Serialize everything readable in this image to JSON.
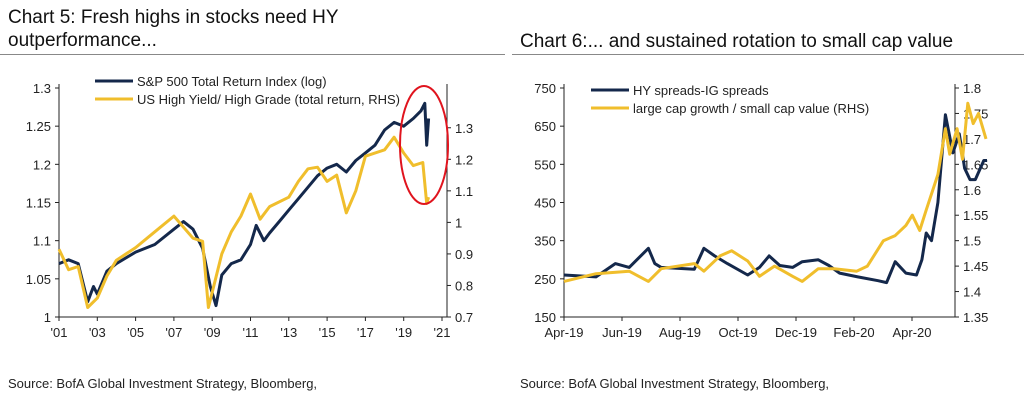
{
  "chart_data": [
    {
      "type": "line",
      "title": "Chart 5: Fresh highs in stocks need HY outperformance...",
      "source": "Source: BofA Global Investment Strategy, Bloomberg,",
      "xticks": [
        "'01",
        "'03",
        "'05",
        "'07",
        "'09",
        "'11",
        "'13",
        "'15",
        "'17",
        "'19",
        "'21"
      ],
      "xlim": [
        2001,
        2021
      ],
      "ylim": [
        1,
        1.3
      ],
      "yticks": [
        "1",
        "1.05",
        "1.1",
        "1.15",
        "1.2",
        "1.25",
        "1.3"
      ],
      "y2lim": [
        0.7,
        1.35
      ],
      "y2ticks": [
        "0.7",
        "0.8",
        "0.9",
        "1",
        "1.1",
        "1.2",
        "1.3"
      ],
      "legend_placement": "top-left",
      "annotation": "red ellipse highlighting 2019-2020 divergence",
      "series": [
        {
          "name": "S&P 500 Total Return Index (log)",
          "axis": "left",
          "color": "#14284b",
          "x": [
            2001,
            2001.5,
            2002,
            2002.5,
            2002.8,
            2003,
            2003.5,
            2004,
            2005,
            2006,
            2007,
            2007.5,
            2008,
            2008.5,
            2008.9,
            2009.2,
            2009.5,
            2010,
            2010.5,
            2011,
            2011.3,
            2011.7,
            2012,
            2012.5,
            2013,
            2013.5,
            2014,
            2014.5,
            2015,
            2015.5,
            2016,
            2016.5,
            2017,
            2017.5,
            2018,
            2018.5,
            2019,
            2019.5,
            2019.9,
            2020.1,
            2020.2,
            2020.3
          ],
          "y": [
            1.07,
            1.075,
            1.07,
            1.02,
            1.04,
            1.03,
            1.06,
            1.07,
            1.085,
            1.095,
            1.115,
            1.125,
            1.115,
            1.09,
            1.04,
            1.015,
            1.055,
            1.07,
            1.075,
            1.095,
            1.12,
            1.1,
            1.11,
            1.125,
            1.14,
            1.155,
            1.17,
            1.185,
            1.195,
            1.2,
            1.19,
            1.205,
            1.215,
            1.225,
            1.245,
            1.255,
            1.25,
            1.26,
            1.27,
            1.28,
            1.225,
            1.26
          ]
        },
        {
          "name": "US High Yield/ High Grade (total return, RHS)",
          "axis": "right",
          "color": "#f0be2c",
          "x": [
            2001,
            2001.5,
            2002,
            2002.5,
            2003,
            2003.5,
            2004,
            2005,
            2006,
            2007,
            2008,
            2008.5,
            2008.8,
            2009.5,
            2010,
            2010.5,
            2011,
            2011.5,
            2012,
            2013,
            2013.5,
            2014,
            2014.5,
            2015,
            2015.5,
            2016,
            2016.5,
            2017,
            2018,
            2018.5,
            2019,
            2019.5,
            2020,
            2020.2,
            2020.3
          ],
          "y": [
            0.915,
            0.85,
            0.86,
            0.73,
            0.76,
            0.83,
            0.88,
            0.92,
            0.97,
            1.02,
            0.95,
            0.94,
            0.73,
            0.9,
            0.97,
            1.02,
            1.09,
            1.01,
            1.05,
            1.08,
            1.13,
            1.17,
            1.175,
            1.13,
            1.15,
            1.03,
            1.1,
            1.21,
            1.23,
            1.27,
            1.22,
            1.18,
            1.19,
            1.06,
            1.08
          ]
        }
      ]
    },
    {
      "type": "line",
      "title": "Chart 6:... and sustained rotation to small cap value",
      "source": "Source: BofA Global Investment Strategy, Bloomberg,",
      "xticks": [
        "Apr-19",
        "Jun-19",
        "Aug-19",
        "Oct-19",
        "Dec-19",
        "Feb-20",
        "Apr-20"
      ],
      "xlim": [
        "2019-04-01",
        "2020-05-15"
      ],
      "ylim": [
        150,
        750
      ],
      "yticks": [
        "150",
        "250",
        "350",
        "450",
        "550",
        "650",
        "750"
      ],
      "y2lim": [
        1.35,
        1.8
      ],
      "y2ticks": [
        "1.35",
        "1.4",
        "1.45",
        "1.5",
        "1.55",
        "1.6",
        "1.65",
        "1.7",
        "1.75",
        "1.8"
      ],
      "legend_placement": "top-left",
      "series": [
        {
          "name": "HY spreads-IG spreads",
          "axis": "left",
          "color": "#14284b",
          "x": [
            "2019-04-01",
            "2019-05-01",
            "2019-05-19",
            "2019-06-01",
            "2019-06-19",
            "2019-06-25",
            "2019-07-01",
            "2019-08-01",
            "2019-08-10",
            "2019-08-20",
            "2019-09-01",
            "2019-09-20",
            "2019-10-01",
            "2019-10-10",
            "2019-10-20",
            "2019-11-01",
            "2019-11-10",
            "2019-11-25",
            "2019-12-05",
            "2019-12-15",
            "2020-01-01",
            "2020-01-20",
            "2020-01-28",
            "2020-02-05",
            "2020-02-15",
            "2020-02-25",
            "2020-03-01",
            "2020-03-05",
            "2020-03-10",
            "2020-03-16",
            "2020-03-23",
            "2020-03-30",
            "2020-04-05",
            "2020-04-10",
            "2020-04-15",
            "2020-04-20",
            "2020-04-28",
            "2020-05-01"
          ],
          "y": [
            260,
            255,
            290,
            280,
            330,
            290,
            280,
            275,
            330,
            310,
            290,
            260,
            280,
            310,
            285,
            280,
            295,
            300,
            285,
            265,
            255,
            245,
            240,
            295,
            265,
            260,
            300,
            370,
            350,
            450,
            680,
            580,
            630,
            540,
            510,
            510,
            560,
            560
          ]
        },
        {
          "name": "large cap growth / small cap value (RHS)",
          "axis": "right",
          "color": "#f0be2c",
          "x": [
            "2019-04-01",
            "2019-05-01",
            "2019-06-01",
            "2019-06-19",
            "2019-07-01",
            "2019-08-01",
            "2019-08-10",
            "2019-08-25",
            "2019-09-05",
            "2019-09-20",
            "2019-10-01",
            "2019-10-15",
            "2019-11-01",
            "2019-11-10",
            "2019-11-25",
            "2019-12-10",
            "2019-12-31",
            "2020-01-10",
            "2020-01-25",
            "2020-02-05",
            "2020-02-15",
            "2020-02-21",
            "2020-02-28",
            "2020-03-05",
            "2020-03-16",
            "2020-03-23",
            "2020-03-27",
            "2020-04-03",
            "2020-04-08",
            "2020-04-13",
            "2020-04-18",
            "2020-04-23",
            "2020-04-30"
          ],
          "y": [
            1.42,
            1.435,
            1.44,
            1.42,
            1.445,
            1.455,
            1.44,
            1.47,
            1.48,
            1.46,
            1.43,
            1.45,
            1.43,
            1.42,
            1.445,
            1.445,
            1.44,
            1.45,
            1.5,
            1.51,
            1.53,
            1.55,
            1.52,
            1.56,
            1.63,
            1.72,
            1.67,
            1.72,
            1.66,
            1.77,
            1.73,
            1.75,
            1.7
          ]
        }
      ]
    }
  ]
}
